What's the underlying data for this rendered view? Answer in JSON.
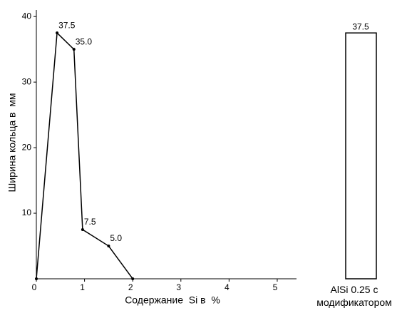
{
  "chart_data": [
    {
      "type": "line",
      "x_label": "Содержание  Si в  %",
      "y_label": "Ширина кольца в  мм",
      "x": [
        0,
        0.43,
        0.78,
        0.96,
        1.5,
        2
      ],
      "values": [
        0,
        37.5,
        35,
        7.5,
        5,
        0
      ],
      "value_labels": [
        null,
        "37.5",
        "35.0",
        "7.5",
        "5.0",
        null
      ],
      "color": "#000000",
      "xlim": [
        0,
        5.4
      ],
      "xticks": [
        0,
        1,
        2,
        3,
        4,
        5
      ],
      "ylim": [
        0,
        41
      ],
      "yticks": [
        10,
        20,
        30,
        40
      ]
    },
    {
      "type": "bar",
      "categories": [
        "AlSi 0.25 с\nмодификатором"
      ],
      "values": [
        37.5
      ],
      "value_labels": [
        "37.5"
      ],
      "color": "#ffffff",
      "ylim": [
        0,
        41
      ]
    }
  ]
}
